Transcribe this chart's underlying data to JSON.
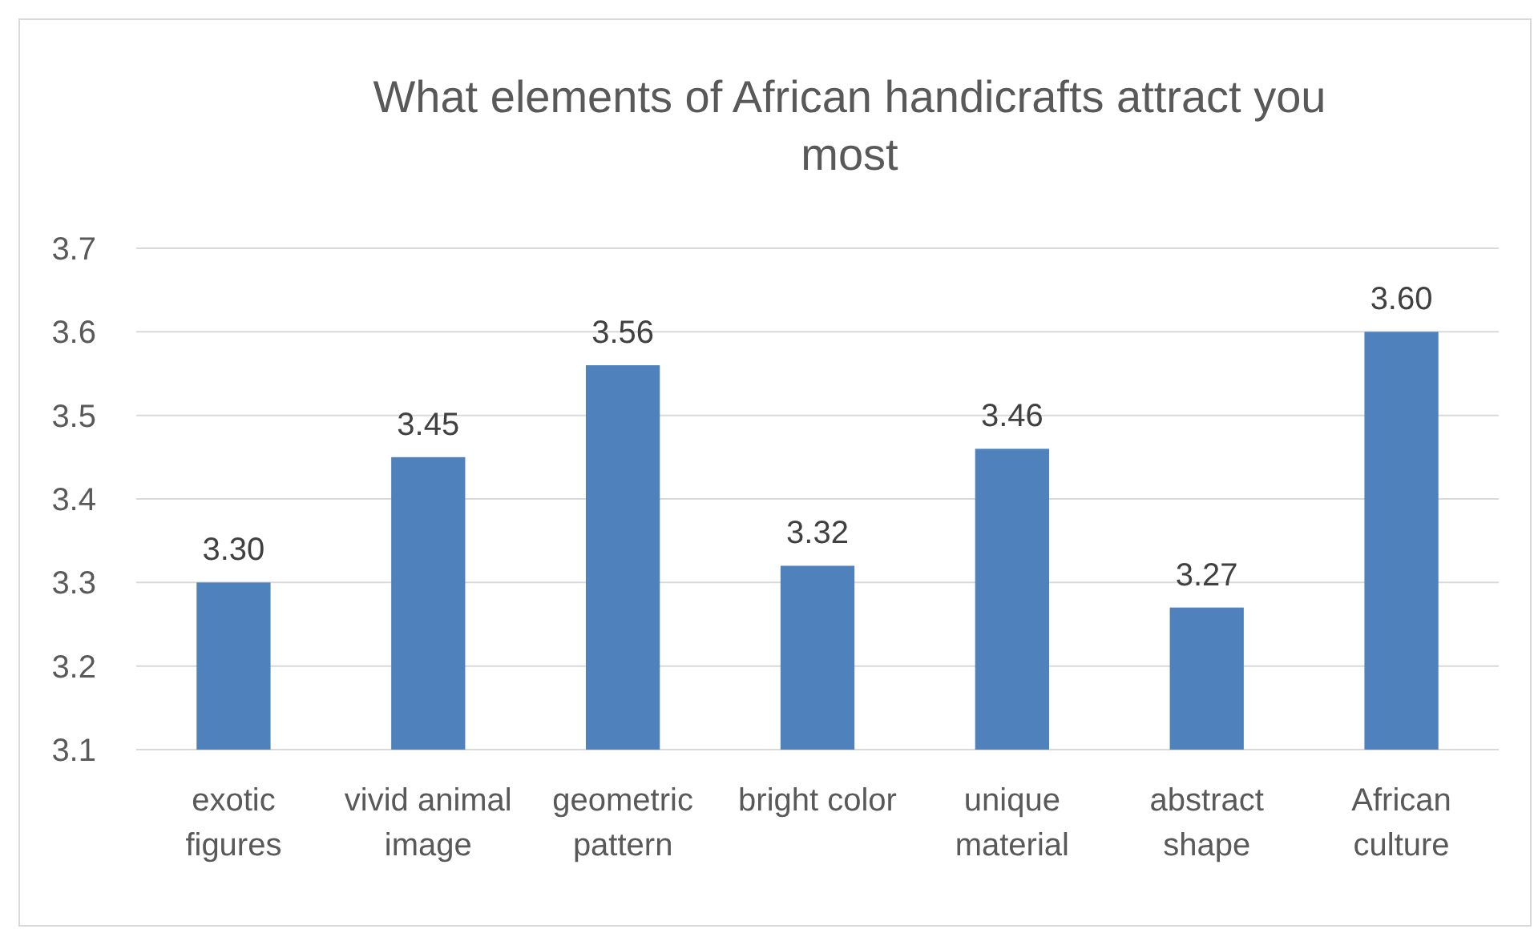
{
  "chart_data": {
    "type": "bar",
    "title": "What elements of African handicrafts attract you most",
    "categories": [
      "exotic figures",
      "vivid animal image",
      "geometric pattern",
      "bright color",
      "unique material",
      "abstract shape",
      "African culture"
    ],
    "values": [
      3.3,
      3.45,
      3.56,
      3.32,
      3.46,
      3.27,
      3.6
    ],
    "value_labels": [
      "3.30",
      "3.45",
      "3.56",
      "3.32",
      "3.46",
      "3.27",
      "3.60"
    ],
    "color": "#4f81bd",
    "ylim": [
      3.1,
      3.7
    ],
    "yticks": [
      3.1,
      3.2,
      3.3,
      3.4,
      3.5,
      3.6,
      3.7
    ],
    "grid": "y"
  }
}
